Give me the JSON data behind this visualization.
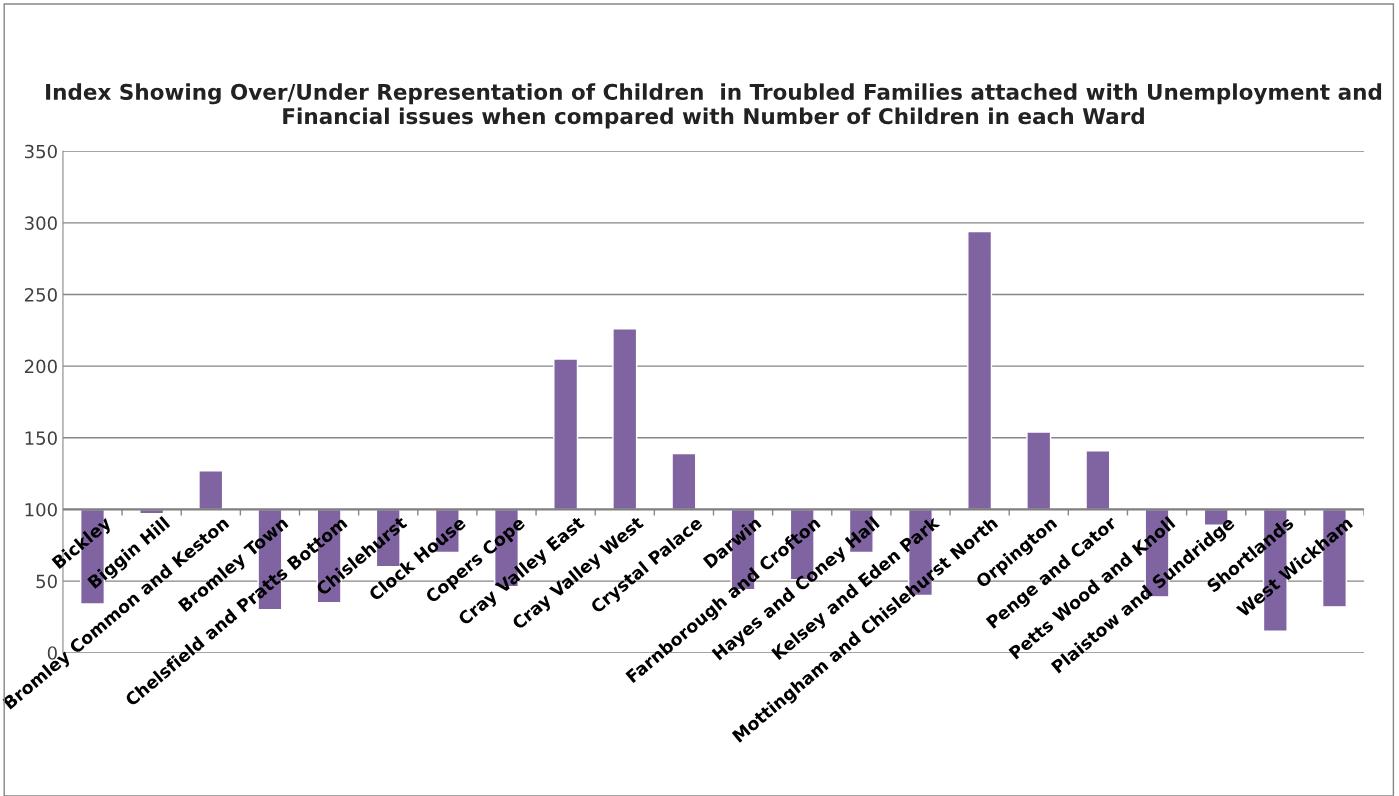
{
  "chart_data": {
    "type": "bar",
    "title": "Index Showing Over/Under Representation of Children  in Troubled Families attached with Unemployment and Financial issues when compared with Number of Children in each Ward",
    "categories": [
      "Bickley",
      "Biggin Hill",
      "Bromley Common and Keston",
      "Bromley Town",
      "Chelsfield and Pratts Bottom",
      "Chislehurst",
      "Clock House",
      "Copers Cope",
      "Cray Valley East",
      "Cray Valley West",
      "Crystal Palace",
      "Darwin",
      "Farnborough and Crofton",
      "Hayes and Coney Hall",
      "Kelsey and Eden Park",
      "Mottingham and Chislehurst North",
      "Orpington",
      "Penge and Cator",
      "Petts Wood and Knoll",
      "Plaistow and Sundridge",
      "Shortlands",
      "West Wickham"
    ],
    "base": [
      100,
      100,
      100,
      100,
      100,
      100,
      100,
      100,
      100,
      100,
      100,
      100,
      100,
      100,
      100,
      100,
      100,
      100,
      100,
      100,
      100,
      100
    ],
    "values": [
      -66,
      -3,
      27,
      -70,
      -65,
      -40,
      -30,
      -54,
      105,
      126,
      39,
      -56,
      -49,
      -30,
      -60,
      194,
      54,
      41,
      -61,
      -11,
      -85,
      -68
    ],
    "color": "#8064a2",
    "ref_lines": [
      {
        "axis": "y",
        "value": 100,
        "color": "#7f7f7f"
      }
    ],
    "ylim": [
      0,
      350
    ],
    "yticks": [
      0,
      50,
      100,
      150,
      200,
      250,
      300,
      350
    ],
    "grid": "y"
  }
}
